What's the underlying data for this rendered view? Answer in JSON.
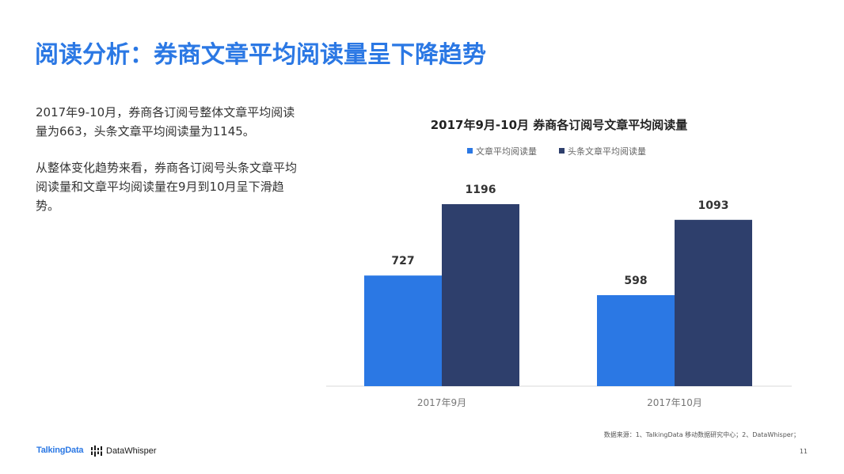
{
  "slide": {
    "title": "阅读分析：券商文章平均阅读量呈下降趋势",
    "paragraphs": [
      "2017年9-10月，券商各订阅号整体文章平均阅读量为663，头条文章平均阅读量为1145。",
      "从整体变化趋势来看，券商各订阅号头条文章平均阅读量和文章平均阅读量在9月到10月呈下滑趋势。"
    ],
    "footer": {
      "logo_left": "TalkingData",
      "logo_right": "DataWhisper",
      "source": "数据来源：1、TalkingData 移动数据研究中心；2、DataWhisper；",
      "page_number": "11"
    }
  },
  "chart_data": {
    "type": "bar",
    "title": "2017年9月-10月 券商各订阅号文章平均阅读量",
    "categories": [
      "2017年9月",
      "2017年10月"
    ],
    "series": [
      {
        "name": "文章平均阅读量",
        "values": [
          727,
          598
        ],
        "color": "#2b78e4"
      },
      {
        "name": "头条文章平均阅读量",
        "values": [
          1196,
          1093
        ],
        "color": "#2e3f6c"
      }
    ],
    "ylim": [
      0,
      1300
    ],
    "grid": false,
    "legend": "top-center",
    "xlabel": "",
    "ylabel": ""
  }
}
